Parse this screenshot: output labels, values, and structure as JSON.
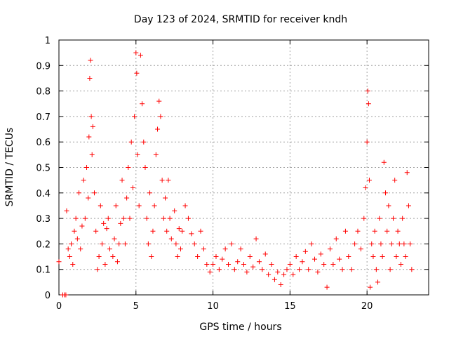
{
  "chart_data": {
    "type": "scatter",
    "title": "Day 123 of 2024, SRMTID for receiver kndh",
    "xlabel": "GPS time / hours",
    "ylabel": "SRMTID / TECUs",
    "xlim": [
      0,
      24
    ],
    "ylim": [
      0,
      1
    ],
    "xticks": [
      0,
      5,
      10,
      15,
      20
    ],
    "yticks": [
      0,
      0.1,
      0.2,
      0.3,
      0.4,
      0.5,
      0.6,
      0.7,
      0.8,
      0.9,
      1
    ],
    "xtick_labels": [
      "0",
      "5",
      "10",
      "15",
      "20"
    ],
    "ytick_labels": [
      "0",
      "0.1",
      "0.2",
      "0.3",
      "0.4",
      "0.5",
      "0.6",
      "0.7",
      "0.8",
      "0.9",
      "1"
    ],
    "grid": true,
    "marker": "+",
    "color": "#ff0000",
    "series": [
      {
        "name": "SRMTID",
        "points": [
          [
            0.0,
            0.13
          ],
          [
            0.25,
            0.0
          ],
          [
            0.35,
            0.0
          ],
          [
            0.45,
            0.0
          ],
          [
            0.5,
            0.33
          ],
          [
            0.6,
            0.18
          ],
          [
            0.7,
            0.15
          ],
          [
            0.8,
            0.2
          ],
          [
            0.9,
            0.12
          ],
          [
            1.0,
            0.25
          ],
          [
            1.1,
            0.3
          ],
          [
            1.2,
            0.22
          ],
          [
            1.3,
            0.4
          ],
          [
            1.4,
            0.18
          ],
          [
            1.5,
            0.27
          ],
          [
            1.6,
            0.45
          ],
          [
            1.7,
            0.3
          ],
          [
            1.8,
            0.5
          ],
          [
            1.9,
            0.38
          ],
          [
            1.95,
            0.62
          ],
          [
            2.0,
            0.85
          ],
          [
            2.05,
            0.92
          ],
          [
            2.1,
            0.7
          ],
          [
            2.15,
            0.55
          ],
          [
            2.2,
            0.66
          ],
          [
            2.3,
            0.4
          ],
          [
            2.4,
            0.25
          ],
          [
            2.5,
            0.1
          ],
          [
            2.6,
            0.15
          ],
          [
            2.7,
            0.35
          ],
          [
            2.8,
            0.2
          ],
          [
            2.9,
            0.28
          ],
          [
            3.0,
            0.12
          ],
          [
            3.1,
            0.26
          ],
          [
            3.2,
            0.3
          ],
          [
            3.3,
            0.18
          ],
          [
            3.5,
            0.15
          ],
          [
            3.6,
            0.22
          ],
          [
            3.7,
            0.35
          ],
          [
            3.8,
            0.13
          ],
          [
            3.9,
            0.2
          ],
          [
            4.0,
            0.28
          ],
          [
            4.1,
            0.45
          ],
          [
            4.2,
            0.3
          ],
          [
            4.3,
            0.2
          ],
          [
            4.4,
            0.38
          ],
          [
            4.5,
            0.5
          ],
          [
            4.6,
            0.3
          ],
          [
            4.7,
            0.6
          ],
          [
            4.8,
            0.42
          ],
          [
            4.9,
            0.7
          ],
          [
            5.0,
            0.95
          ],
          [
            5.05,
            0.87
          ],
          [
            5.1,
            0.55
          ],
          [
            5.2,
            0.35
          ],
          [
            5.3,
            0.94
          ],
          [
            5.4,
            0.75
          ],
          [
            5.5,
            0.6
          ],
          [
            5.6,
            0.5
          ],
          [
            5.7,
            0.3
          ],
          [
            5.8,
            0.2
          ],
          [
            5.9,
            0.4
          ],
          [
            6.0,
            0.15
          ],
          [
            6.1,
            0.25
          ],
          [
            6.2,
            0.35
          ],
          [
            6.3,
            0.55
          ],
          [
            6.4,
            0.65
          ],
          [
            6.5,
            0.76
          ],
          [
            6.6,
            0.7
          ],
          [
            6.7,
            0.45
          ],
          [
            6.8,
            0.3
          ],
          [
            6.9,
            0.38
          ],
          [
            7.0,
            0.25
          ],
          [
            7.1,
            0.45
          ],
          [
            7.2,
            0.3
          ],
          [
            7.3,
            0.22
          ],
          [
            7.5,
            0.33
          ],
          [
            7.6,
            0.2
          ],
          [
            7.7,
            0.15
          ],
          [
            7.8,
            0.26
          ],
          [
            7.9,
            0.18
          ],
          [
            8.0,
            0.25
          ],
          [
            8.2,
            0.35
          ],
          [
            8.4,
            0.3
          ],
          [
            8.6,
            0.24
          ],
          [
            8.8,
            0.2
          ],
          [
            9.0,
            0.15
          ],
          [
            9.2,
            0.25
          ],
          [
            9.4,
            0.18
          ],
          [
            9.6,
            0.12
          ],
          [
            9.8,
            0.09
          ],
          [
            10.0,
            0.12
          ],
          [
            10.2,
            0.15
          ],
          [
            10.4,
            0.1
          ],
          [
            10.6,
            0.14
          ],
          [
            10.8,
            0.18
          ],
          [
            11.0,
            0.12
          ],
          [
            11.2,
            0.2
          ],
          [
            11.4,
            0.1
          ],
          [
            11.6,
            0.13
          ],
          [
            11.8,
            0.18
          ],
          [
            12.0,
            0.12
          ],
          [
            12.2,
            0.09
          ],
          [
            12.4,
            0.15
          ],
          [
            12.6,
            0.11
          ],
          [
            12.8,
            0.22
          ],
          [
            13.0,
            0.13
          ],
          [
            13.2,
            0.1
          ],
          [
            13.4,
            0.16
          ],
          [
            13.6,
            0.08
          ],
          [
            13.8,
            0.12
          ],
          [
            14.0,
            0.06
          ],
          [
            14.2,
            0.09
          ],
          [
            14.4,
            0.04
          ],
          [
            14.6,
            0.08
          ],
          [
            14.8,
            0.1
          ],
          [
            15.0,
            0.12
          ],
          [
            15.2,
            0.08
          ],
          [
            15.4,
            0.15
          ],
          [
            15.6,
            0.1
          ],
          [
            15.8,
            0.13
          ],
          [
            16.0,
            0.17
          ],
          [
            16.2,
            0.1
          ],
          [
            16.4,
            0.2
          ],
          [
            16.6,
            0.14
          ],
          [
            16.8,
            0.09
          ],
          [
            17.0,
            0.16
          ],
          [
            17.2,
            0.12
          ],
          [
            17.4,
            0.03
          ],
          [
            17.6,
            0.18
          ],
          [
            17.8,
            0.12
          ],
          [
            18.0,
            0.22
          ],
          [
            18.2,
            0.14
          ],
          [
            18.4,
            0.1
          ],
          [
            18.6,
            0.25
          ],
          [
            18.8,
            0.15
          ],
          [
            19.0,
            0.1
          ],
          [
            19.2,
            0.2
          ],
          [
            19.4,
            0.25
          ],
          [
            19.6,
            0.18
          ],
          [
            19.8,
            0.3
          ],
          [
            19.9,
            0.42
          ],
          [
            20.0,
            0.6
          ],
          [
            20.05,
            0.8
          ],
          [
            20.1,
            0.75
          ],
          [
            20.15,
            0.45
          ],
          [
            20.2,
            0.03
          ],
          [
            20.3,
            0.2
          ],
          [
            20.4,
            0.15
          ],
          [
            20.5,
            0.25
          ],
          [
            20.6,
            0.1
          ],
          [
            20.7,
            0.05
          ],
          [
            20.8,
            0.3
          ],
          [
            20.9,
            0.2
          ],
          [
            21.0,
            0.15
          ],
          [
            21.1,
            0.52
          ],
          [
            21.2,
            0.4
          ],
          [
            21.3,
            0.25
          ],
          [
            21.4,
            0.35
          ],
          [
            21.5,
            0.1
          ],
          [
            21.6,
            0.2
          ],
          [
            21.7,
            0.3
          ],
          [
            21.8,
            0.45
          ],
          [
            21.9,
            0.15
          ],
          [
            22.0,
            0.25
          ],
          [
            22.1,
            0.2
          ],
          [
            22.2,
            0.12
          ],
          [
            22.3,
            0.3
          ],
          [
            22.4,
            0.2
          ],
          [
            22.5,
            0.15
          ],
          [
            22.6,
            0.48
          ],
          [
            22.7,
            0.35
          ],
          [
            22.8,
            0.2
          ],
          [
            22.9,
            0.1
          ]
        ]
      }
    ]
  }
}
